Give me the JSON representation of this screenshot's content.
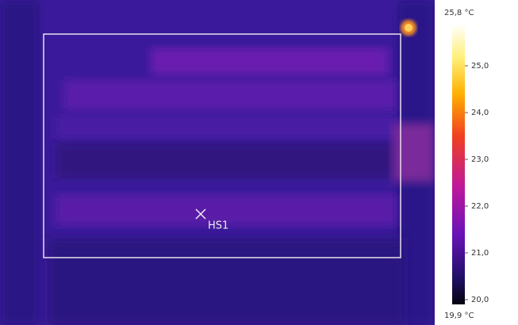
{
  "thermal_image": {
    "marker_label": "HS1"
  },
  "color_scale": {
    "max_label": "25,8 °C",
    "min_label": "19,9 °C",
    "ticks": [
      "25,0",
      "24,0",
      "23,0",
      "22,0",
      "21,0",
      "20,0"
    ]
  }
}
